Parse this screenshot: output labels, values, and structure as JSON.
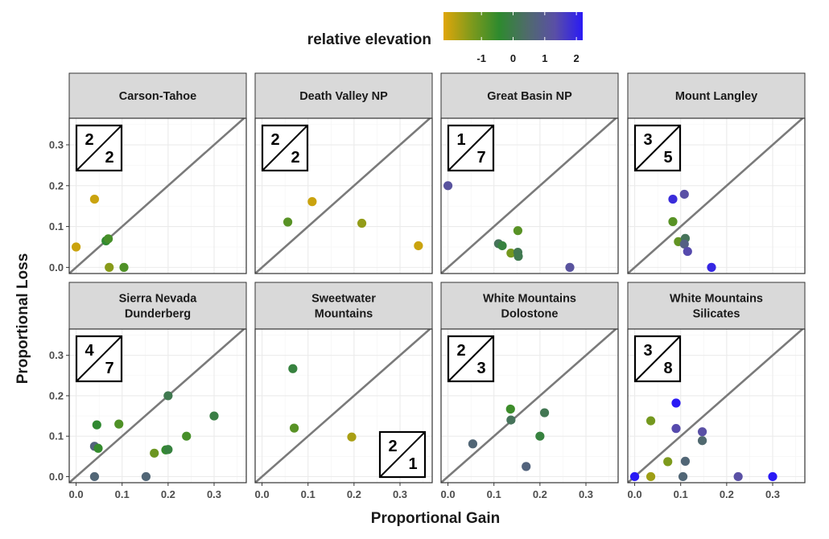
{
  "chart_data": {
    "type": "scatter",
    "xlabel": "Proportional Gain",
    "ylabel": "Proportional Loss",
    "xlim": [
      -0.015,
      0.37
    ],
    "ylim": [
      -0.015,
      0.365
    ],
    "x_ticks": [
      "0.0",
      "0.1",
      "0.2",
      "0.3"
    ],
    "y_ticks": [
      "0.0",
      "0.1",
      "0.2",
      "0.3"
    ],
    "reference_line": "y = x",
    "grid": true,
    "legend": {
      "title": "relative elevation",
      "position": "top",
      "ticks": [
        "-1",
        "0",
        "1",
        "2"
      ],
      "tick_values": [
        -1,
        0,
        1,
        2
      ],
      "range": [
        -2.2,
        2.2
      ],
      "colors": [
        "#e0a60a",
        "#7f9a1c",
        "#2e8a2e",
        "#4f6b6b",
        "#5a4fa6",
        "#2a1af5"
      ]
    },
    "panels": [
      {
        "title": "Carson-Tahoe",
        "box": {
          "top": "2",
          "bottom": "2",
          "corner": "top-left"
        },
        "points": [
          {
            "x": 0.0,
            "y": 0.05,
            "elev": -2.0
          },
          {
            "x": 0.04,
            "y": 0.167,
            "elev": -2.0
          },
          {
            "x": 0.065,
            "y": 0.065,
            "elev": -0.4
          },
          {
            "x": 0.07,
            "y": 0.07,
            "elev": -0.7
          },
          {
            "x": 0.072,
            "y": 0.0,
            "elev": -1.4
          },
          {
            "x": 0.104,
            "y": 0.0,
            "elev": -0.8
          }
        ]
      },
      {
        "title": "Death Valley NP",
        "box": {
          "top": "2",
          "bottom": "2",
          "corner": "top-left"
        },
        "points": [
          {
            "x": 0.056,
            "y": 0.111,
            "elev": -0.9
          },
          {
            "x": 0.109,
            "y": 0.161,
            "elev": -2.0
          },
          {
            "x": 0.217,
            "y": 0.108,
            "elev": -1.5
          },
          {
            "x": 0.34,
            "y": 0.053,
            "elev": -2.0
          }
        ]
      },
      {
        "title": "Great Basin NP",
        "box": {
          "top": "1",
          "bottom": "7",
          "corner": "top-left"
        },
        "points": [
          {
            "x": 0.0,
            "y": 0.2,
            "elev": 1.2
          },
          {
            "x": 0.11,
            "y": 0.058,
            "elev": 0.2
          },
          {
            "x": 0.118,
            "y": 0.053,
            "elev": -0.2
          },
          {
            "x": 0.137,
            "y": 0.035,
            "elev": -1.2
          },
          {
            "x": 0.152,
            "y": 0.09,
            "elev": -0.9
          },
          {
            "x": 0.152,
            "y": 0.037,
            "elev": 0.1
          },
          {
            "x": 0.153,
            "y": 0.027,
            "elev": 0.05
          },
          {
            "x": 0.265,
            "y": 0.0,
            "elev": 1.2
          }
        ]
      },
      {
        "title": "Mount Langley",
        "box": {
          "top": "3",
          "bottom": "5",
          "corner": "top-left"
        },
        "points": [
          {
            "x": 0.083,
            "y": 0.167,
            "elev": 1.9
          },
          {
            "x": 0.108,
            "y": 0.179,
            "elev": 1.3
          },
          {
            "x": 0.083,
            "y": 0.112,
            "elev": -0.9
          },
          {
            "x": 0.095,
            "y": 0.063,
            "elev": -1.0
          },
          {
            "x": 0.11,
            "y": 0.071,
            "elev": 0.2
          },
          {
            "x": 0.108,
            "y": 0.057,
            "elev": 0.8
          },
          {
            "x": 0.115,
            "y": 0.039,
            "elev": 1.4
          },
          {
            "x": 0.167,
            "y": 0.0,
            "elev": 2.0
          }
        ]
      },
      {
        "title": "Sierra Nevada\nDunderberg",
        "box": {
          "top": "4",
          "bottom": "7",
          "corner": "top-left"
        },
        "points": [
          {
            "x": 0.04,
            "y": 0.075,
            "elev": 0.7
          },
          {
            "x": 0.045,
            "y": 0.128,
            "elev": -0.4
          },
          {
            "x": 0.048,
            "y": 0.07,
            "elev": -0.5
          },
          {
            "x": 0.04,
            "y": 0.0,
            "elev": 0.6
          },
          {
            "x": 0.093,
            "y": 0.13,
            "elev": -0.8
          },
          {
            "x": 0.152,
            "y": 0.0,
            "elev": 0.6
          },
          {
            "x": 0.17,
            "y": 0.058,
            "elev": -1.1
          },
          {
            "x": 0.195,
            "y": 0.066,
            "elev": -0.5
          },
          {
            "x": 0.2,
            "y": 0.2,
            "elev": 0.05
          },
          {
            "x": 0.2,
            "y": 0.067,
            "elev": -0.2
          },
          {
            "x": 0.24,
            "y": 0.1,
            "elev": -0.7
          },
          {
            "x": 0.3,
            "y": 0.15,
            "elev": -0.1
          }
        ]
      },
      {
        "title": "Sweetwater\nMountains",
        "box": {
          "top": "2",
          "bottom": "1",
          "corner": "bottom-right"
        },
        "points": [
          {
            "x": 0.067,
            "y": 0.267,
            "elev": -0.2
          },
          {
            "x": 0.07,
            "y": 0.12,
            "elev": -0.9
          },
          {
            "x": 0.195,
            "y": 0.098,
            "elev": -1.7
          }
        ]
      },
      {
        "title": "White Mountains\nDolostone",
        "box": {
          "top": "2",
          "bottom": "3",
          "corner": "top-left"
        },
        "points": [
          {
            "x": 0.054,
            "y": 0.081,
            "elev": 0.6
          },
          {
            "x": 0.136,
            "y": 0.167,
            "elev": -0.6
          },
          {
            "x": 0.137,
            "y": 0.14,
            "elev": 0.2
          },
          {
            "x": 0.17,
            "y": 0.025,
            "elev": 0.7
          },
          {
            "x": 0.2,
            "y": 0.1,
            "elev": -0.2
          },
          {
            "x": 0.21,
            "y": 0.158,
            "elev": 0.1
          }
        ]
      },
      {
        "title": "White Mountains\nSilicates",
        "box": {
          "top": "3",
          "bottom": "8",
          "corner": "top-left"
        },
        "points": [
          {
            "x": 0.0,
            "y": 0.0,
            "elev": 2.2
          },
          {
            "x": 0.035,
            "y": 0.0,
            "elev": -1.6
          },
          {
            "x": 0.035,
            "y": 0.138,
            "elev": -1.2
          },
          {
            "x": 0.072,
            "y": 0.037,
            "elev": -1.3
          },
          {
            "x": 0.09,
            "y": 0.182,
            "elev": 2.2
          },
          {
            "x": 0.09,
            "y": 0.119,
            "elev": 1.4
          },
          {
            "x": 0.105,
            "y": 0.0,
            "elev": 0.6
          },
          {
            "x": 0.11,
            "y": 0.038,
            "elev": 0.6
          },
          {
            "x": 0.147,
            "y": 0.111,
            "elev": 1.3
          },
          {
            "x": 0.147,
            "y": 0.089,
            "elev": 0.5
          },
          {
            "x": 0.225,
            "y": 0.0,
            "elev": 1.3
          },
          {
            "x": 0.3,
            "y": 0.0,
            "elev": 2.2
          }
        ]
      }
    ]
  }
}
